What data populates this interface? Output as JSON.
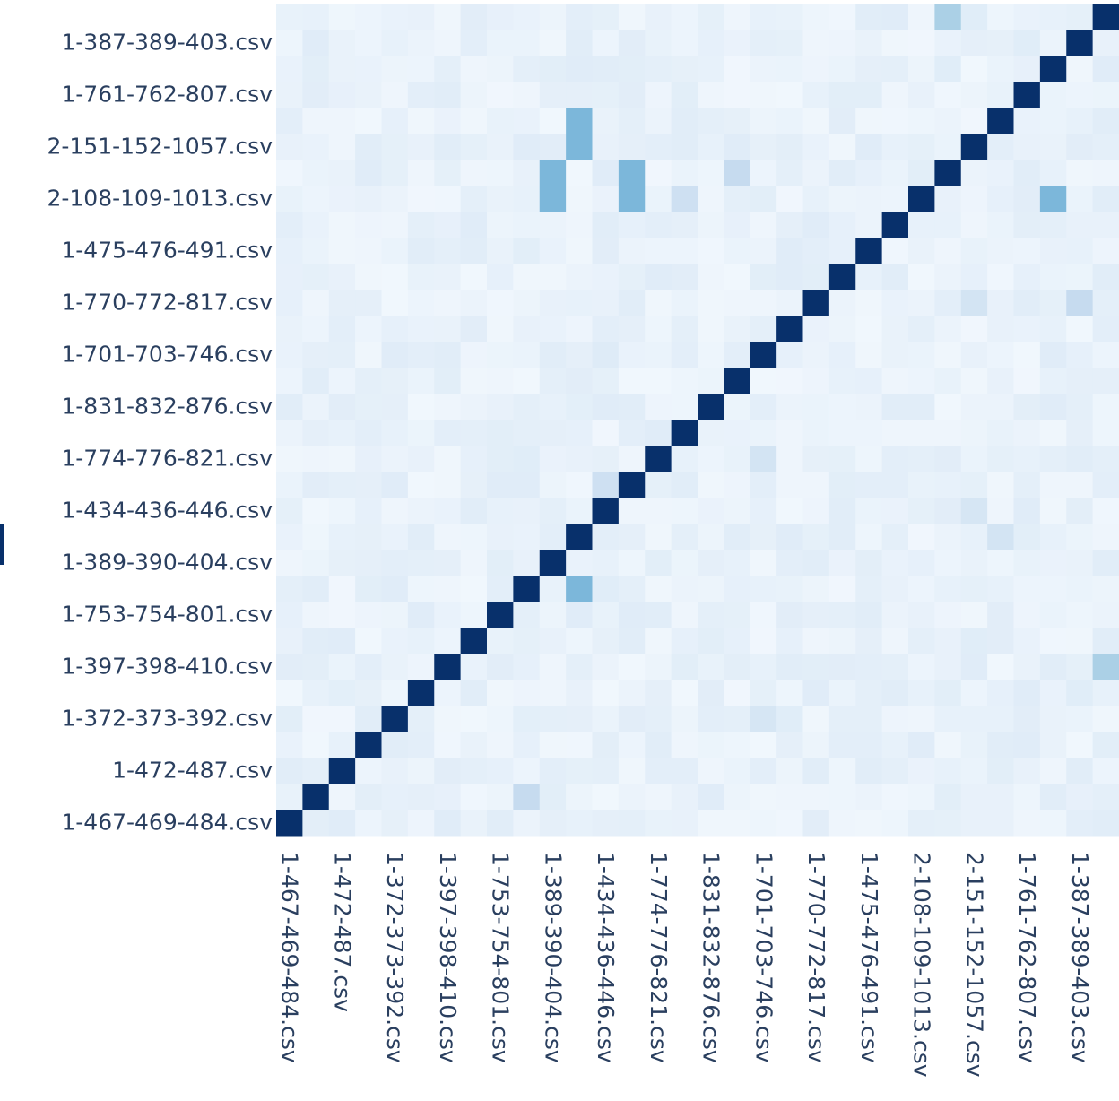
{
  "chart_data": {
    "type": "heatmap",
    "title": "",
    "xlabel": "",
    "ylabel": "",
    "colorscale": "Blues",
    "color_low": "#f7fbff",
    "color_high": "#08306b",
    "zlim": [
      0,
      1
    ],
    "labels": [
      "1-467-469-484.csv",
      "1-472-487.csv",
      "1-372-373-392.csv",
      "1-397-398-410.csv",
      "1-753-754-801.csv",
      "1-389-390-404.csv",
      "1-434-436-446.csv",
      "1-774-776-821.csv",
      "1-831-832-876.csv",
      "1-701-703-746.csv",
      "1-770-772-817.csv",
      "1-475-476-491.csv",
      "2-108-109-1013.csv",
      "2-151-152-1057.csv",
      "1-761-762-807.csv",
      "1-387-389-403.csv"
    ],
    "n_cells": 32,
    "background_value": 0.04,
    "diagonal_value": 1.0,
    "highlights": [
      {
        "row": 4,
        "col": 11,
        "value": 0.55
      },
      {
        "row": 5,
        "col": 11,
        "value": 0.55
      },
      {
        "row": 6,
        "col": 10,
        "value": 0.55
      },
      {
        "row": 6,
        "col": 13,
        "value": 0.55
      },
      {
        "row": 7,
        "col": 10,
        "value": 0.55
      },
      {
        "row": 7,
        "col": 13,
        "value": 0.55
      },
      {
        "row": 22,
        "col": 11,
        "value": 0.55
      },
      {
        "row": 28,
        "col": 3,
        "value": 0.55
      },
      {
        "row": 0,
        "col": 25,
        "value": 0.4
      },
      {
        "row": 7,
        "col": 29,
        "value": 0.55
      },
      {
        "row": 7,
        "col": 15,
        "value": 0.25
      },
      {
        "row": 11,
        "col": 30,
        "value": 0.3
      },
      {
        "row": 6,
        "col": 17,
        "value": 0.3
      },
      {
        "row": 6,
        "col": 13,
        "value": 0.55
      },
      {
        "row": 18,
        "col": 12,
        "value": 0.25
      },
      {
        "row": 20,
        "col": 27,
        "value": 0.22
      },
      {
        "row": 25,
        "col": 31,
        "value": 0.4
      },
      {
        "row": 22,
        "col": 9,
        "value": 0.22
      },
      {
        "row": 30,
        "col": 9,
        "value": 0.3
      },
      {
        "row": 27,
        "col": 18,
        "value": 0.2
      },
      {
        "row": 17,
        "col": 18,
        "value": 0.22
      },
      {
        "row": 19,
        "col": 26,
        "value": 0.2
      },
      {
        "row": 11,
        "col": 26,
        "value": 0.22
      },
      {
        "row": 13,
        "col": 12,
        "value": 0.15
      }
    ]
  }
}
